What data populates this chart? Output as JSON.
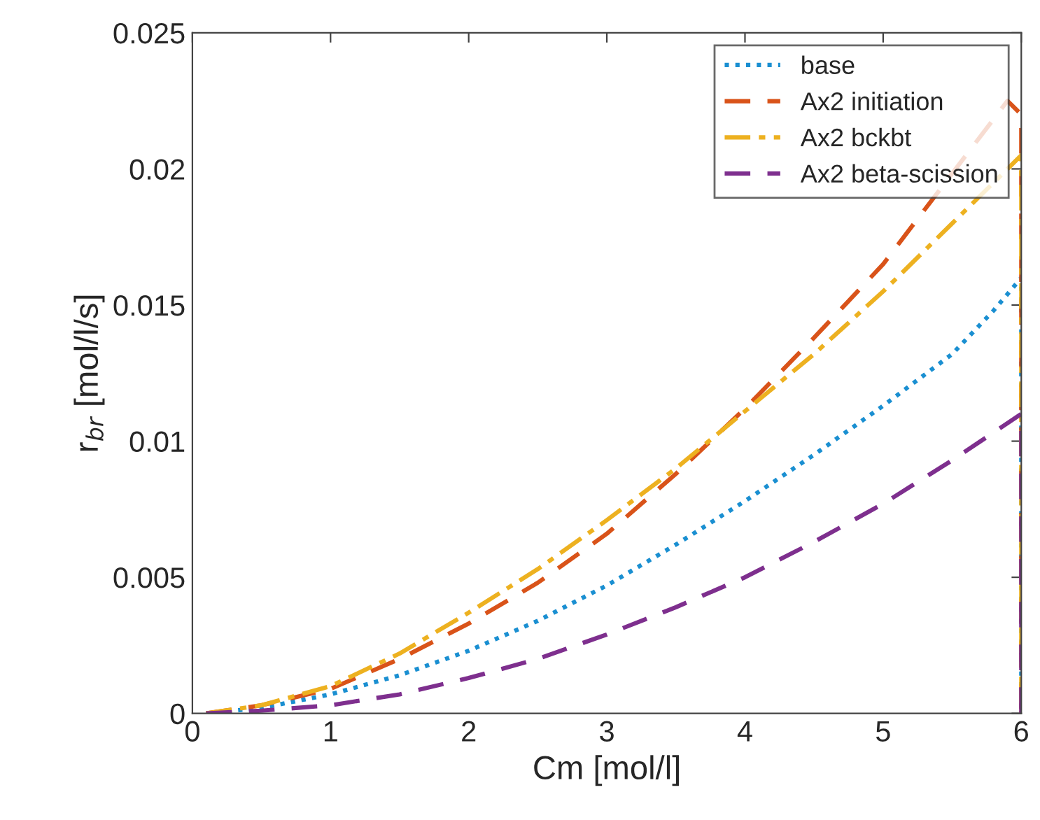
{
  "chart_data": {
    "type": "line",
    "xlabel": "Cm [mol/l]",
    "ylabel": "r$_{br}$ [mol/l/s]",
    "xlim": [
      0,
      6
    ],
    "ylim": [
      0,
      0.025
    ],
    "xticks": [
      0,
      1,
      2,
      3,
      4,
      5,
      6
    ],
    "yticks": [
      0,
      0.005,
      0.01,
      0.015,
      0.02,
      0.025
    ],
    "grid": false,
    "legend": "top right",
    "series": [
      {
        "name": "base",
        "color": "#1a8fd1",
        "line_style": "dotted",
        "x": [
          0.1,
          0.5,
          1,
          1.5,
          2,
          2.5,
          3,
          3.5,
          4,
          4.5,
          5,
          5.5,
          5.8,
          6,
          6
        ],
        "values": [
          0,
          0.0002,
          0.0007,
          0.0014,
          0.0023,
          0.0034,
          0.0047,
          0.0062,
          0.0078,
          0.0095,
          0.0113,
          0.0132,
          0.0148,
          0.016,
          0
        ]
      },
      {
        "name": "Ax2 initiation",
        "color": "#d95319",
        "line_style": "dashed",
        "x": [
          0.1,
          0.5,
          1,
          1.5,
          2,
          2.5,
          3,
          3.5,
          4,
          4.5,
          5,
          5.9,
          6,
          6
        ],
        "values": [
          0,
          0.0003,
          0.0009,
          0.002,
          0.0033,
          0.0048,
          0.0066,
          0.0088,
          0.0112,
          0.0138,
          0.0165,
          0.0225,
          0.022,
          0
        ]
      },
      {
        "name": "Ax2 bckbt",
        "color": "#edb120",
        "line_style": "dashdot",
        "x": [
          0.1,
          0.5,
          1,
          1.5,
          2,
          2.5,
          3,
          3.5,
          4,
          4.5,
          5,
          5.5,
          6,
          6
        ],
        "values": [
          0,
          0.0003,
          0.001,
          0.0022,
          0.0037,
          0.0053,
          0.0071,
          0.009,
          0.0111,
          0.0132,
          0.0155,
          0.018,
          0.0205,
          0
        ]
      },
      {
        "name": "Ax2 beta-scission",
        "color": "#7e2f8e",
        "line_style": "dashed",
        "x": [
          0.1,
          0.5,
          1,
          1.5,
          2,
          2.5,
          3,
          3.5,
          4,
          4.5,
          5,
          5.5,
          6,
          6
        ],
        "values": [
          0,
          0.0001,
          0.0003,
          0.0007,
          0.0013,
          0.002,
          0.0029,
          0.0039,
          0.005,
          0.0063,
          0.0077,
          0.0093,
          0.011,
          0
        ]
      }
    ]
  }
}
